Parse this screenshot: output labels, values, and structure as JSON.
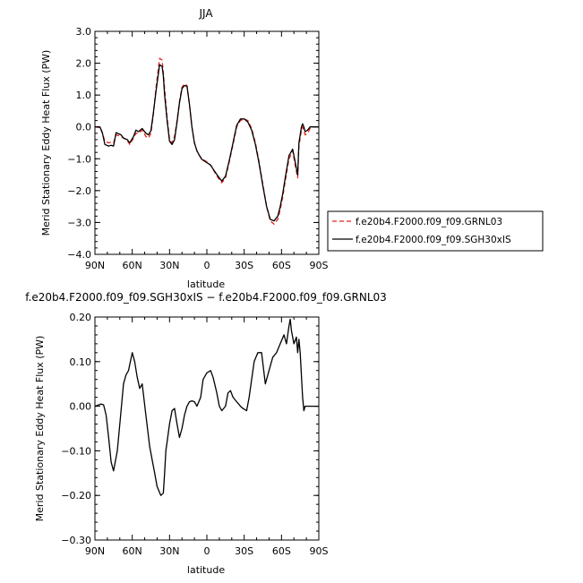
{
  "chart_data": [
    {
      "type": "line",
      "title": "JJA",
      "xlabel": "latitude",
      "ylabel": "Merid Stationary Eddy Heat Flux (PW)",
      "xlim": [
        90,
        -90
      ],
      "ylim": [
        -4.0,
        3.0
      ],
      "x_ticks": [
        90,
        60,
        30,
        0,
        -30,
        -60,
        -90
      ],
      "x_tick_labels": [
        "90N",
        "60N",
        "30N",
        "0",
        "30S",
        "60S",
        "90S"
      ],
      "y_ticks": [
        3.0,
        2.0,
        1.0,
        0.0,
        -1.0,
        -2.0,
        -3.0,
        -4.0
      ],
      "y_tick_labels": [
        "3.0",
        "2.0",
        "1.0",
        "0.0",
        "−1.0",
        "−2.0",
        "−3.0",
        "−4.0"
      ],
      "legend_position": "right",
      "series": [
        {
          "name": "f.e20b4.F2000.f09_f09.GRNL03",
          "color": "#e8211b",
          "dash": "dashed",
          "x": [
            90,
            86,
            84,
            82,
            79,
            77,
            75,
            73,
            69,
            67,
            64,
            62,
            59,
            57,
            55,
            52,
            49,
            47,
            45,
            43,
            41,
            38,
            36,
            35,
            34,
            32,
            30,
            28,
            26,
            24,
            22,
            20,
            18,
            16,
            14,
            12,
            10,
            8,
            6,
            4,
            2,
            0,
            -3,
            -6,
            -9,
            -12,
            -15,
            -18,
            -21,
            -24,
            -27,
            -30,
            -33,
            -36,
            -39,
            -42,
            -45,
            -48,
            -51,
            -54,
            -57,
            -59,
            -61,
            -63,
            -66,
            -69,
            -71,
            -73,
            -74,
            -76,
            -77,
            -78,
            -79,
            -81,
            -83,
            -85,
            -87,
            -90
          ],
          "y": [
            0.0,
            -0.02,
            -0.2,
            -0.45,
            -0.5,
            -0.48,
            -0.5,
            -0.25,
            -0.3,
            -0.35,
            -0.42,
            -0.55,
            -0.35,
            -0.2,
            -0.2,
            -0.1,
            -0.3,
            -0.35,
            -0.2,
            0.4,
            1.2,
            2.15,
            2.1,
            1.7,
            1.2,
            0.3,
            -0.4,
            -0.5,
            -0.3,
            0.2,
            0.8,
            1.25,
            1.35,
            1.3,
            0.7,
            0.0,
            -0.5,
            -0.75,
            -0.9,
            -1.0,
            -1.05,
            -1.1,
            -1.2,
            -1.4,
            -1.6,
            -1.75,
            -1.6,
            -1.1,
            -0.55,
            0.0,
            0.2,
            0.25,
            0.2,
            -0.05,
            -0.5,
            -1.1,
            -1.8,
            -2.5,
            -2.95,
            -3.05,
            -2.9,
            -2.6,
            -2.2,
            -1.7,
            -1.0,
            -0.75,
            -1.2,
            -1.6,
            -0.6,
            -0.1,
            0.0,
            -0.1,
            -0.25,
            -0.2,
            -0.05,
            0.0,
            0.0,
            0.0
          ]
        },
        {
          "name": "f.e20b4.F2000.f09_f09.SGH30xIS",
          "color": "#000000",
          "dash": "solid",
          "x": [
            90,
            86,
            84,
            82,
            79,
            77,
            75,
            73,
            69,
            67,
            64,
            62,
            59,
            57,
            55,
            52,
            49,
            47,
            45,
            43,
            41,
            38,
            36,
            35,
            34,
            32,
            30,
            28,
            26,
            24,
            22,
            20,
            18,
            16,
            14,
            12,
            10,
            8,
            6,
            4,
            2,
            0,
            -3,
            -6,
            -9,
            -12,
            -15,
            -18,
            -21,
            -24,
            -27,
            -30,
            -33,
            -36,
            -39,
            -42,
            -45,
            -48,
            -51,
            -54,
            -57,
            -59,
            -61,
            -63,
            -66,
            -69,
            -71,
            -73,
            -74,
            -76,
            -77,
            -78,
            -79,
            -81,
            -83,
            -85,
            -87,
            -90
          ],
          "y": [
            0.0,
            0.0,
            -0.18,
            -0.55,
            -0.6,
            -0.58,
            -0.6,
            -0.18,
            -0.25,
            -0.35,
            -0.4,
            -0.5,
            -0.3,
            -0.1,
            -0.15,
            -0.05,
            -0.2,
            -0.25,
            -0.12,
            0.45,
            1.1,
            1.95,
            1.9,
            1.6,
            1.0,
            0.2,
            -0.45,
            -0.55,
            -0.4,
            0.15,
            0.75,
            1.2,
            1.3,
            1.28,
            0.7,
            0.0,
            -0.5,
            -0.75,
            -0.9,
            -1.02,
            -1.07,
            -1.12,
            -1.2,
            -1.38,
            -1.55,
            -1.7,
            -1.55,
            -1.05,
            -0.5,
            0.05,
            0.25,
            0.25,
            0.15,
            -0.1,
            -0.55,
            -1.15,
            -1.85,
            -2.5,
            -2.9,
            -2.95,
            -2.8,
            -2.5,
            -2.1,
            -1.6,
            -0.9,
            -0.7,
            -1.1,
            -1.5,
            -0.5,
            0.0,
            0.1,
            0.0,
            -0.15,
            -0.1,
            0.0,
            0.0,
            0.0,
            0.0
          ]
        }
      ]
    },
    {
      "type": "line",
      "title": "f.e20b4.F2000.f09_f09.SGH30xIS − f.e20b4.F2000.f09_f09.GRNL03",
      "xlabel": "latitude",
      "ylabel": "Merid Stationary Eddy Heat Flux (PW)",
      "xlim": [
        90,
        -90
      ],
      "ylim": [
        -0.3,
        0.2
      ],
      "x_ticks": [
        90,
        60,
        30,
        0,
        -30,
        -60,
        -90
      ],
      "x_tick_labels": [
        "90N",
        "60N",
        "30N",
        "0",
        "30S",
        "60S",
        "90S"
      ],
      "y_ticks": [
        0.2,
        0.1,
        0.0,
        -0.1,
        -0.2,
        -0.3
      ],
      "y_tick_labels": [
        "0.20",
        "0.10",
        "0.00",
        "−0.10",
        "−0.20",
        "−0.30"
      ],
      "series": [
        {
          "name": "",
          "color": "#000000",
          "dash": "solid",
          "x": [
            90,
            88,
            85,
            83,
            81,
            79,
            77,
            75,
            72,
            70,
            67,
            65,
            63,
            60,
            58,
            56,
            54,
            52,
            49,
            46,
            44,
            42,
            40,
            37,
            35,
            34,
            33,
            32,
            30,
            28,
            26,
            24,
            22,
            20,
            18,
            16,
            14,
            12,
            10,
            8,
            5,
            3,
            0,
            -3,
            -5,
            -8,
            -10,
            -12,
            -15,
            -17,
            -19,
            -21,
            -24,
            -27,
            -29,
            -32,
            -34,
            -36,
            -38,
            -41,
            -44,
            -47,
            -50,
            -53,
            -56,
            -59,
            -62,
            -64,
            -66,
            -67,
            -68,
            -70,
            -72,
            -73,
            -74,
            -75,
            -77,
            -78,
            -79,
            -80,
            -81,
            -82,
            -83,
            -84,
            -85,
            -86,
            -88,
            -90
          ],
          "y": [
            0.0,
            0.002,
            0.005,
            0.003,
            -0.02,
            -0.07,
            -0.125,
            -0.145,
            -0.1,
            -0.04,
            0.05,
            0.07,
            0.08,
            0.12,
            0.1,
            0.065,
            0.04,
            0.05,
            -0.02,
            -0.09,
            -0.12,
            -0.15,
            -0.18,
            -0.2,
            -0.195,
            -0.15,
            -0.1,
            -0.08,
            -0.04,
            -0.01,
            -0.005,
            -0.04,
            -0.07,
            -0.05,
            -0.02,
            0.0,
            0.01,
            0.012,
            0.01,
            0.0,
            0.02,
            0.06,
            0.075,
            0.08,
            0.065,
            0.03,
            0.0,
            -0.01,
            0.0,
            0.03,
            0.035,
            0.02,
            0.01,
            0.0,
            -0.005,
            -0.01,
            0.02,
            0.06,
            0.1,
            0.12,
            0.12,
            0.05,
            0.08,
            0.11,
            0.12,
            0.14,
            0.16,
            0.14,
            0.18,
            0.195,
            0.17,
            0.14,
            0.155,
            0.12,
            0.15,
            0.12,
            0.02,
            -0.01,
            0.0,
            0.0,
            0.0,
            0.0,
            0.0,
            0.0,
            0.0,
            0.0,
            0.0,
            0.0
          ]
        }
      ]
    }
  ]
}
